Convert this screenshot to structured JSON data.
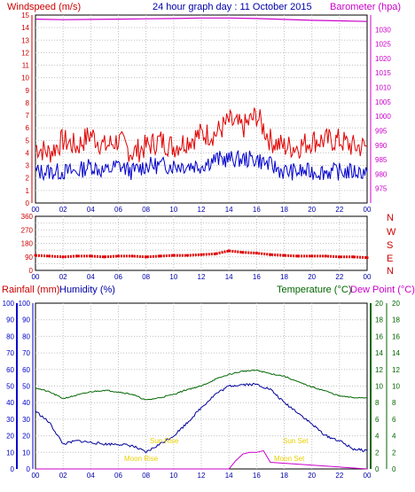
{
  "header": {
    "left_title": "Windspeed (m/s)",
    "center_title": "24 hour graph day : 11 October 2015",
    "right_title": "Barometer (hpa)"
  },
  "lower_header": {
    "rainfall": "Rainfall (mm)",
    "humidity": "Humidity (%)",
    "temperature": "Temperature (°C)",
    "dewpoint": "Dew Point (°C)"
  },
  "sun_moon": {
    "sun_rise": "Sun Rise",
    "sun_set": "Sun Set",
    "moon_rise": "Moon Rise",
    "moon_set": "Moon Set"
  },
  "colors": {
    "wind_axis": "#cc0000",
    "baro": "#cc00cc",
    "gust": "#e00000",
    "avg_wind": "#0000cc",
    "direction": "#e00000",
    "rain_axis": "#0000cc",
    "temp": "#006600",
    "humidity": "#000099",
    "rain": "#cc00cc",
    "sun_label": "#e8d000"
  },
  "chart_data": [
    {
      "type": "line",
      "title": "24 hour graph day : 11 October 2015",
      "ylabel": "Windspeed (m/s)",
      "y2label": "Barometer (hpa)",
      "x_ticks": [
        "00",
        "02",
        "04",
        "06",
        "08",
        "10",
        "12",
        "14",
        "16",
        "18",
        "20",
        "22",
        "00"
      ],
      "ylim": [
        0,
        15
      ],
      "y_ticks": [
        0,
        1,
        2,
        3,
        4,
        5,
        6,
        7,
        8,
        9,
        10,
        11,
        12,
        13,
        14,
        15
      ],
      "y2lim": [
        970,
        1035
      ],
      "y2_ticks": [
        975,
        980,
        985,
        990,
        995,
        1000,
        1005,
        1010,
        1015,
        1020,
        1025,
        1030
      ],
      "series": [
        {
          "role": "barometer",
          "x": [
            0,
            2,
            4,
            6,
            8,
            10,
            12,
            14,
            16,
            18,
            20,
            22,
            24
          ],
          "values": [
            1033.6,
            1033.4,
            1033.5,
            1033.6,
            1033.7,
            1033.8,
            1034.0,
            1034.0,
            1033.8,
            1033.5,
            1033.2,
            1033.0,
            1032.8
          ]
        },
        {
          "role": "gust",
          "x": [
            0,
            1,
            2,
            3,
            4,
            5,
            6,
            7,
            8,
            9,
            10,
            11,
            12,
            13,
            14,
            15,
            16,
            17,
            18,
            19,
            20,
            21,
            22,
            23,
            24
          ],
          "values": [
            4.5,
            4,
            5,
            4.5,
            5.5,
            4.5,
            5,
            4,
            4.5,
            5,
            4.5,
            5,
            5.5,
            5.5,
            6.5,
            6,
            7,
            5,
            4.5,
            4.5,
            5,
            5,
            5,
            4.5,
            4.5
          ]
        },
        {
          "role": "average",
          "x": [
            0,
            1,
            2,
            3,
            4,
            5,
            6,
            7,
            8,
            9,
            10,
            11,
            12,
            13,
            14,
            15,
            16,
            17,
            18,
            19,
            20,
            21,
            22,
            23,
            24
          ],
          "values": [
            2.5,
            2.5,
            2.5,
            2.5,
            3,
            2.5,
            3,
            2.5,
            3,
            3,
            3,
            3,
            3,
            3.5,
            3.5,
            3.5,
            3.5,
            3,
            2.5,
            2.5,
            2.5,
            2.5,
            2.5,
            2.5,
            2.5
          ]
        }
      ]
    },
    {
      "type": "scatter",
      "ylabel": "N W S E N",
      "x_ticks": [
        "00",
        "02",
        "04",
        "06",
        "08",
        "10",
        "12",
        "14",
        "16",
        "18",
        "20",
        "22",
        "00"
      ],
      "ylim": [
        0,
        360
      ],
      "y_ticks": [
        0,
        45,
        90,
        135,
        180,
        225,
        270,
        315,
        360
      ],
      "y_tick_labels": [
        "0",
        "",
        "90",
        "",
        "180",
        "",
        "270",
        "",
        "360"
      ],
      "direction_labels": [
        "N",
        "W",
        "S",
        "E",
        "N"
      ],
      "points_x": [
        0,
        1,
        2,
        3,
        4,
        5,
        6,
        7,
        8,
        9,
        10,
        11,
        12,
        13,
        14,
        15,
        16,
        17,
        18,
        19,
        20,
        21,
        22,
        23,
        24
      ],
      "points_y": [
        100,
        95,
        90,
        95,
        95,
        90,
        95,
        95,
        90,
        95,
        100,
        100,
        105,
        110,
        130,
        120,
        115,
        105,
        100,
        95,
        95,
        95,
        90,
        90,
        85
      ]
    },
    {
      "type": "line",
      "ylabel": "Rainfall (mm) / Humidity (%)",
      "y2label": "Temperature (°C) / Dew Point (°C)",
      "x_ticks": [
        "00",
        "02",
        "04",
        "06",
        "08",
        "10",
        "12",
        "14",
        "16",
        "18",
        "20",
        "22",
        "00"
      ],
      "ylim": [
        0,
        100
      ],
      "y_ticks": [
        0,
        10,
        20,
        30,
        40,
        50,
        60,
        70,
        80,
        90,
        100
      ],
      "y2lim": [
        0,
        20
      ],
      "y2_ticks": [
        0,
        2,
        4,
        6,
        8,
        10,
        12,
        14,
        16,
        18,
        20
      ],
      "series": [
        {
          "role": "temperature",
          "x": [
            0,
            1,
            2,
            3,
            4,
            5,
            6,
            7,
            8,
            9,
            10,
            11,
            12,
            13,
            14,
            15,
            16,
            17,
            18,
            19,
            20,
            21,
            22,
            23,
            24
          ],
          "values": [
            9.8,
            9.3,
            8.5,
            8.9,
            9.3,
            9.5,
            9.3,
            9.0,
            8.3,
            8.6,
            9.0,
            9.6,
            10.0,
            10.8,
            11.4,
            11.8,
            11.9,
            11.5,
            11.2,
            10.5,
            9.9,
            9.4,
            8.8,
            8.6,
            8.6
          ]
        },
        {
          "role": "humidity",
          "x": [
            0,
            1,
            2,
            3,
            4,
            5,
            6,
            7,
            8,
            9,
            10,
            11,
            12,
            13,
            14,
            15,
            16,
            17,
            18,
            19,
            20,
            21,
            22,
            23,
            24
          ],
          "values": [
            35,
            28,
            15,
            17,
            16,
            15,
            15,
            14,
            10,
            15,
            20,
            28,
            37,
            45,
            50,
            51,
            51,
            48,
            40,
            34,
            27,
            20,
            17,
            12,
            11
          ]
        },
        {
          "role": "rainfall",
          "x": [
            0,
            14,
            14.5,
            15,
            15.5,
            16,
            16.5,
            17,
            24
          ],
          "values": [
            0,
            0,
            5,
            9,
            10,
            10,
            11,
            4,
            0
          ]
        }
      ]
    }
  ]
}
